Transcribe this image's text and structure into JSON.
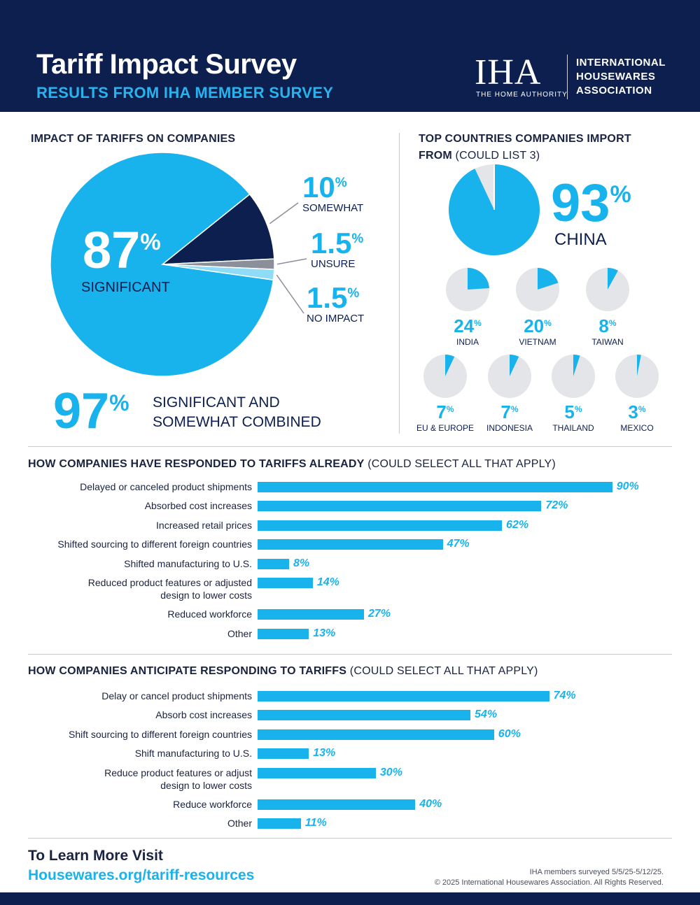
{
  "header": {
    "title": "Tariff Impact Survey",
    "subtitle": "RESULTS FROM IHA MEMBER SURVEY",
    "logo_mark": "IHA",
    "logo_tagline": "THE HOME AUTHORITY",
    "logo_name": [
      "INTERNATIONAL",
      "HOUSEWARES",
      "ASSOCIATION"
    ]
  },
  "colors": {
    "navy": "#0c1f4f",
    "accent_blue": "#18b3ec",
    "light_blue": "#8fdcf7",
    "gray": "#8a8f99",
    "pie_track": "#e4e5e8"
  },
  "impact": {
    "section_title": "IMPACT OF TARIFFS ON COMPANIES",
    "combined_value": "97",
    "combined_label_1": "SIGNIFICANT AND",
    "combined_label_2": "SOMEWHAT COMBINED"
  },
  "countries": {
    "section_title_bold_1": "TOP COUNTRIES COMPANIES IMPORT",
    "section_title_bold_2": "FROM",
    "section_title_light": " (COULD LIST 3)"
  },
  "responded": {
    "section_title_bold": "HOW COMPANIES HAVE RESPONDED TO TARIFFS ALREADY",
    "section_title_light": " (COULD SELECT ALL THAT APPLY)"
  },
  "anticipate": {
    "section_title_bold": "HOW COMPANIES ANTICIPATE RESPONDING TO TARIFFS",
    "section_title_light": " (COULD SELECT ALL THAT APPLY)"
  },
  "footer": {
    "cta": "To Learn More Visit",
    "url": "Housewares.org/tariff-resources",
    "note_1": "IHA members surveyed 5/5/25-5/12/25.",
    "note_2": "© 2025 International Housewares Association. All Rights Reserved."
  },
  "chart_data": [
    {
      "type": "pie",
      "title": "IMPACT OF TARIFFS ON COMPANIES",
      "unit": "%",
      "slices": [
        {
          "label": "SIGNIFICANT",
          "value": 87,
          "display": "87",
          "color": "#18b3ec"
        },
        {
          "label": "SOMEWHAT",
          "value": 10,
          "display": "10",
          "color": "#0c1f4f"
        },
        {
          "label": "UNSURE",
          "value": 1.5,
          "display": "1.5",
          "color": "#8a8f99"
        },
        {
          "label": "NO IMPACT",
          "value": 1.5,
          "display": "1.5",
          "color": "#8fdcf7"
        }
      ]
    },
    {
      "type": "pie",
      "title": "TOP COUNTRIES COMPANIES IMPORT FROM (COULD LIST 3)",
      "unit": "%",
      "items": [
        {
          "label": "CHINA",
          "value": 93
        },
        {
          "label": "INDIA",
          "value": 24
        },
        {
          "label": "VIETNAM",
          "value": 20
        },
        {
          "label": "TAIWAN",
          "value": 8
        },
        {
          "label": "EU & EUROPE",
          "value": 7
        },
        {
          "label": "INDONESIA",
          "value": 7
        },
        {
          "label": "THAILAND",
          "value": 5
        },
        {
          "label": "MEXICO",
          "value": 3
        }
      ]
    },
    {
      "type": "bar",
      "orientation": "horizontal",
      "title": "HOW COMPANIES HAVE RESPONDED TO TARIFFS ALREADY (COULD SELECT ALL THAT APPLY)",
      "unit": "%",
      "categories": [
        [
          "Delayed or canceled product shipments"
        ],
        [
          "Absorbed cost increases"
        ],
        [
          "Increased retail prices"
        ],
        [
          "Shifted sourcing to different foreign countries"
        ],
        [
          "Shifted manufacturing to U.S."
        ],
        [
          "Reduced product features or adjusted",
          "design to lower costs"
        ],
        [
          "Reduced workforce"
        ],
        [
          "Other"
        ]
      ],
      "values": [
        90,
        72,
        62,
        47,
        8,
        14,
        27,
        13
      ]
    },
    {
      "type": "bar",
      "orientation": "horizontal",
      "title": "HOW COMPANIES ANTICIPATE RESPONDING TO TARIFFS (COULD SELECT ALL THAT APPLY)",
      "unit": "%",
      "categories": [
        [
          "Delay or cancel product shipments"
        ],
        [
          "Absorb cost increases"
        ],
        [
          "Shift sourcing to different foreign countries"
        ],
        [
          "Shift manufacturing to U.S."
        ],
        [
          "Reduce product features or adjust",
          "design to lower costs"
        ],
        [
          "Reduce workforce"
        ],
        [
          "Other"
        ]
      ],
      "values": [
        74,
        54,
        60,
        13,
        30,
        40,
        11
      ]
    }
  ]
}
